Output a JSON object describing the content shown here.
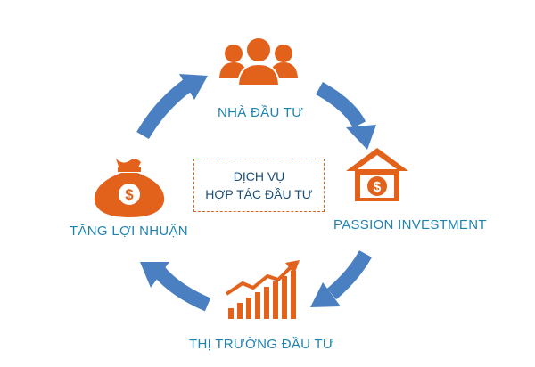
{
  "center": {
    "line1": "DỊCH VỤ",
    "line2": "HỢP TÁC ĐẦU TƯ"
  },
  "nodes": {
    "investors": {
      "label": "NHÀ ĐẦU TƯ",
      "icon": "investors-group-icon"
    },
    "passion": {
      "label": "PASSION INVESTMENT",
      "icon": "house-dollar-icon"
    },
    "market": {
      "label": "THỊ TRƯỜNG ĐẦU TƯ",
      "icon": "growth-chart-icon"
    },
    "profit": {
      "label": "TĂNG LỢI NHUẬN",
      "icon": "money-bag-icon"
    }
  },
  "colors": {
    "icon": "#e2621b",
    "arrow": "#4a7fc1",
    "label": "#1f83b1",
    "center_border": "#e2621b",
    "center_text": "#1a4f7a"
  }
}
